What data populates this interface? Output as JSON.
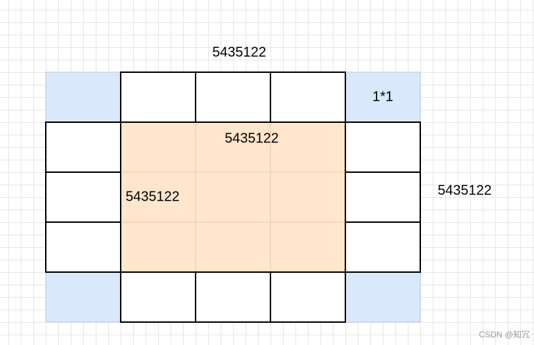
{
  "labels": {
    "top": "5435122",
    "corner_cell": "1*1",
    "center": "5435122",
    "left": "5435122",
    "right": "5435122"
  },
  "watermark": "CSDN @知冗"
}
